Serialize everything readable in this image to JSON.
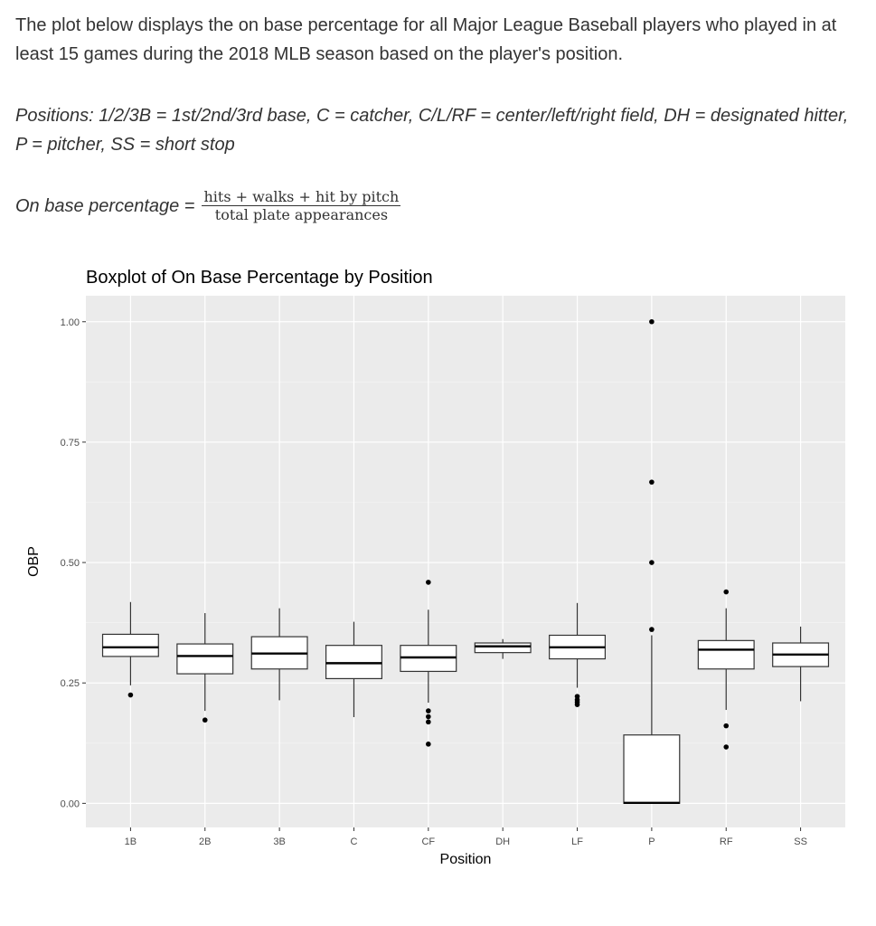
{
  "intro": "The plot below displays the on base percentage for all Major League Baseball players who played in at least 15 games during the 2018 MLB season based on the player's position.",
  "positions_note": "Positions: 1/2/3B = 1st/2nd/3rd base, C = catcher, C/L/RF = center/left/right field, DH = designated hitter, P = pitcher, SS = short stop",
  "obp_definition": {
    "label": "On base percentage =",
    "numerator": "hits + walks + hit by pitch",
    "denominator": "total plate appearances"
  },
  "chart_data": {
    "type": "boxplot",
    "title": "Boxplot of On Base Percentage by Position",
    "xlabel": "Position",
    "ylabel": "OBP",
    "ylim": [
      -0.05,
      1.054
    ],
    "yticks": [
      0.0,
      0.25,
      0.5,
      0.75,
      1.0
    ],
    "ytick_labels": [
      "0.00",
      "0.25",
      "0.50",
      "0.75",
      "1.00"
    ],
    "grid": true,
    "panel_color": "#ebebeb",
    "categories": [
      "1B",
      "2B",
      "3B",
      "C",
      "CF",
      "DH",
      "LF",
      "P",
      "RF",
      "SS"
    ],
    "boxes": [
      {
        "lower": 0.245,
        "q1": 0.305,
        "median": 0.324,
        "q3": 0.351,
        "upper": 0.418,
        "outliers": [
          0.225
        ]
      },
      {
        "lower": 0.192,
        "q1": 0.269,
        "median": 0.306,
        "q3": 0.331,
        "upper": 0.395,
        "outliers": [
          0.173
        ]
      },
      {
        "lower": 0.214,
        "q1": 0.279,
        "median": 0.311,
        "q3": 0.346,
        "upper": 0.405,
        "outliers": []
      },
      {
        "lower": 0.179,
        "q1": 0.259,
        "median": 0.291,
        "q3": 0.328,
        "upper": 0.377,
        "outliers": []
      },
      {
        "lower": 0.209,
        "q1": 0.274,
        "median": 0.303,
        "q3": 0.328,
        "upper": 0.402,
        "outliers": [
          0.459,
          0.192,
          0.18,
          0.169,
          0.123
        ]
      },
      {
        "lower": 0.3,
        "q1": 0.313,
        "median": 0.326,
        "q3": 0.333,
        "upper": 0.341,
        "outliers": []
      },
      {
        "lower": 0.24,
        "q1": 0.3,
        "median": 0.324,
        "q3": 0.349,
        "upper": 0.416,
        "outliers": [
          0.222,
          0.215,
          0.21,
          0.205
        ]
      },
      {
        "lower": 0.0,
        "q1": 0.0,
        "median": 0.001,
        "q3": 0.142,
        "upper": 0.349,
        "outliers": [
          1.0,
          0.667,
          0.5,
          0.361
        ]
      },
      {
        "lower": 0.194,
        "q1": 0.279,
        "median": 0.319,
        "q3": 0.338,
        "upper": 0.405,
        "outliers": [
          0.439,
          0.161,
          0.117
        ]
      },
      {
        "lower": 0.212,
        "q1": 0.284,
        "median": 0.309,
        "q3": 0.333,
        "upper": 0.367,
        "outliers": []
      }
    ]
  }
}
